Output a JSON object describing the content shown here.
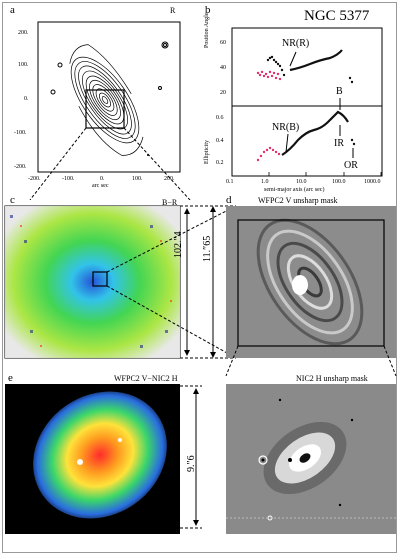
{
  "figure": {
    "panel_labels": {
      "a": "a",
      "b": "b",
      "c": "c",
      "d": "d",
      "e": "e"
    },
    "panel_a": {
      "corner_label": "R",
      "x_axis_label": "arc sec",
      "x_ticks": [
        "-200.",
        "-100.",
        "0.",
        "100.",
        "200."
      ],
      "y_ticks": [
        "200.",
        "100.",
        "0.",
        "-100.",
        "-200."
      ]
    },
    "panel_b": {
      "title": "NGC 5377",
      "top_ylabel": "Position Angle",
      "bottom_ylabel": "Ellipticity",
      "top_yticks": [
        "60",
        "40",
        "20"
      ],
      "bottom_yticks": [
        "0.6",
        "0.4",
        "0.2"
      ],
      "xlabel": "semi-major axis (arc sec)",
      "xticks": [
        "0.1",
        "1.0",
        "10.0",
        "100.0",
        "1000.0"
      ],
      "annotations": {
        "nr_r": "NR(R)",
        "nr_b": "NR(B)",
        "b": "B",
        "ir": "IR",
        "or": "OR"
      }
    },
    "panel_c": {
      "corner_label": "B−R",
      "scale": "102.″4"
    },
    "panel_d": {
      "title": "WFPC2 V unsharp mask",
      "scale": "11.″65"
    },
    "panel_e": {
      "title": "WFPC2 V−NIC2 H",
      "scale": "9.″6"
    },
    "panel_f": {
      "title": "NIC2 H unsharp mask"
    }
  },
  "colors": {
    "pink": "#e0306a",
    "black": "#111111"
  }
}
